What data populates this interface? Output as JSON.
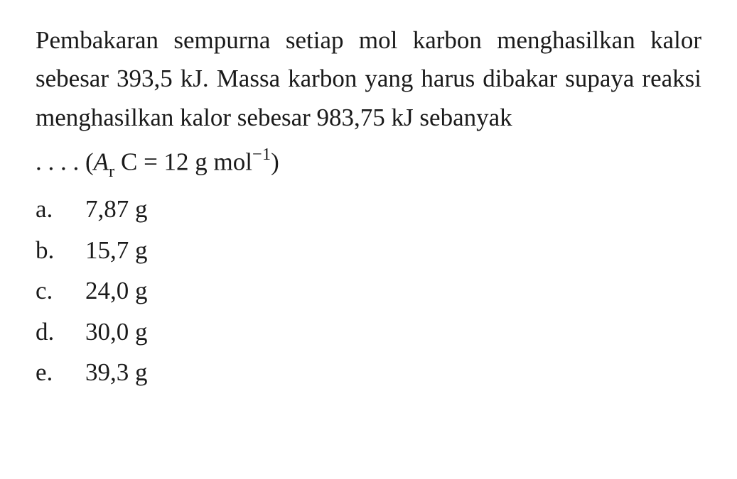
{
  "question": {
    "text_line1": "Pembakaran sempurna setiap mol karbon menghasilkan kalor sebesar  393,5 kJ. Massa karbon yang harus dibakar supaya reaksi menghasilkan kalor sebesar 983,75 kJ sebanyak",
    "formula_prefix": ". . . . (",
    "formula_var": "A",
    "formula_sub": "r",
    "formula_mid": " C = 12 g mol",
    "formula_sup": "−1",
    "formula_suffix": ")"
  },
  "options": [
    {
      "letter": "a.",
      "value": "7,87 g"
    },
    {
      "letter": "b.",
      "value": "15,7 g"
    },
    {
      "letter": "c.",
      "value": "24,0 g"
    },
    {
      "letter": "d.",
      "value": "30,0 g"
    },
    {
      "letter": "e.",
      "value": "39,3 g"
    }
  ],
  "styling": {
    "background_color": "#ffffff",
    "text_color": "#1a1a1a",
    "font_family": "Georgia, Times New Roman, serif",
    "question_fontsize": 35,
    "option_fontsize": 35,
    "line_height": 1.55
  }
}
